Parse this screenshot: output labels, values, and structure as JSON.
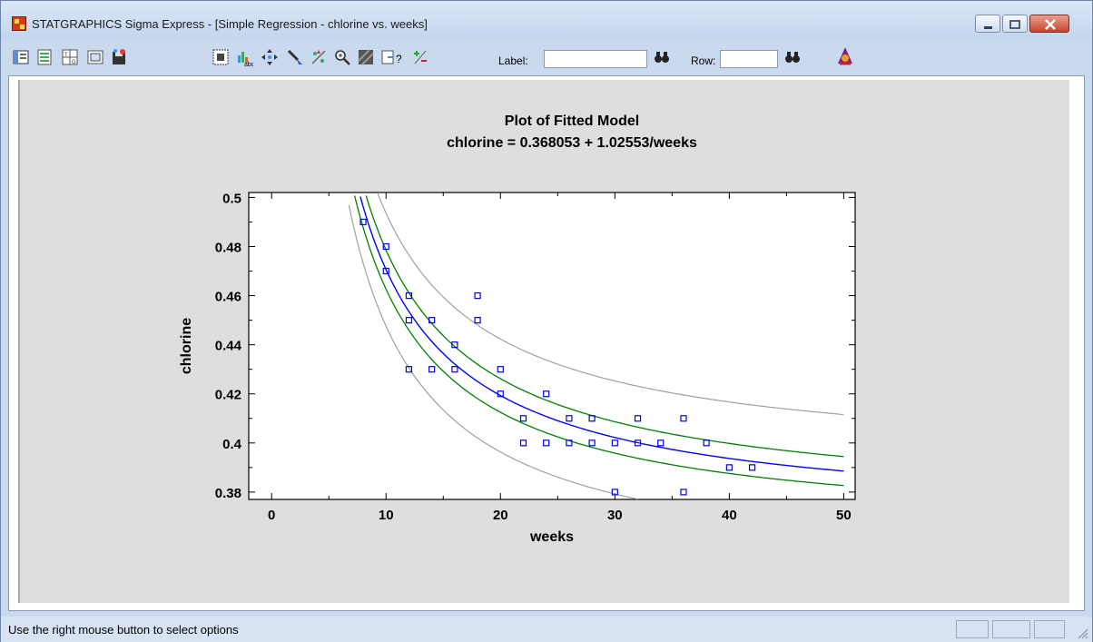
{
  "window": {
    "title": "STATGRAPHICS Sigma Express - [Simple Regression - chlorine vs. weeks]"
  },
  "toolbar": {
    "label_caption": "Label:",
    "label_value": "",
    "row_caption": "Row:",
    "row_value": ""
  },
  "status": {
    "text": "Use the right mouse button to select options"
  },
  "colors": {
    "points": "#0000ee",
    "fit": "#0000ff",
    "confidence": "#008000",
    "prediction": "#a0a0a0",
    "panel": "#dedede"
  },
  "chart_data": {
    "type": "scatter",
    "title": "Plot of Fitted Model",
    "subtitle": "chlorine = 0.368053 + 1.02553/weeks",
    "xlabel": "weeks",
    "ylabel": "chlorine",
    "xlim": [
      -2,
      51
    ],
    "ylim": [
      0.377,
      0.502
    ],
    "xticks": [
      0,
      10,
      20,
      30,
      40,
      50
    ],
    "yticks": [
      0.38,
      0.4,
      0.42,
      0.44,
      0.46,
      0.48,
      0.5
    ],
    "yticklabels": [
      "0.38",
      "0.4",
      "0.42",
      "0.44",
      "0.46",
      "0.48",
      "0.5"
    ],
    "points": [
      {
        "x": 8,
        "y": 0.49
      },
      {
        "x": 10,
        "y": 0.48
      },
      {
        "x": 10,
        "y": 0.47
      },
      {
        "x": 12,
        "y": 0.46
      },
      {
        "x": 12,
        "y": 0.45
      },
      {
        "x": 12,
        "y": 0.43
      },
      {
        "x": 14,
        "y": 0.45
      },
      {
        "x": 14,
        "y": 0.43
      },
      {
        "x": 16,
        "y": 0.44
      },
      {
        "x": 16,
        "y": 0.43
      },
      {
        "x": 18,
        "y": 0.46
      },
      {
        "x": 18,
        "y": 0.45
      },
      {
        "x": 20,
        "y": 0.43
      },
      {
        "x": 20,
        "y": 0.42
      },
      {
        "x": 22,
        "y": 0.41
      },
      {
        "x": 22,
        "y": 0.4
      },
      {
        "x": 24,
        "y": 0.42
      },
      {
        "x": 24,
        "y": 0.4
      },
      {
        "x": 26,
        "y": 0.41
      },
      {
        "x": 26,
        "y": 0.4
      },
      {
        "x": 28,
        "y": 0.41
      },
      {
        "x": 28,
        "y": 0.4
      },
      {
        "x": 30,
        "y": 0.4
      },
      {
        "x": 30,
        "y": 0.38
      },
      {
        "x": 32,
        "y": 0.41
      },
      {
        "x": 32,
        "y": 0.4
      },
      {
        "x": 34,
        "y": 0.4
      },
      {
        "x": 36,
        "y": 0.41
      },
      {
        "x": 36,
        "y": 0.38
      },
      {
        "x": 38,
        "y": 0.4
      },
      {
        "x": 40,
        "y": 0.39
      },
      {
        "x": 42,
        "y": 0.39
      }
    ],
    "fit": {
      "intercept": 0.368053,
      "slope": 1.02553
    },
    "confidence_halfwidth_start": 0.006,
    "confidence_halfwidth_end": 0.0055,
    "prediction_halfwidth": 0.023,
    "grid": false,
    "legend": "none"
  }
}
